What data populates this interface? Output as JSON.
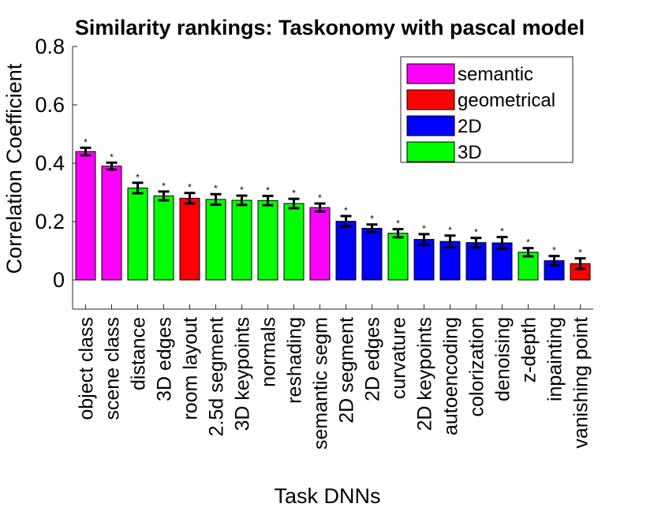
{
  "chart_data": {
    "type": "bar",
    "title": "Similarity rankings: Taskonomy with pascal model",
    "xlabel": "Task DNNs",
    "ylabel": "Correlation Coefficient",
    "ylim": [
      -0.1,
      0.8
    ],
    "yticks": [
      0,
      0.2,
      0.4,
      0.6,
      0.8
    ],
    "ytick_labels": [
      "0",
      "0.2",
      "0.4",
      "0.6",
      "0.8"
    ],
    "grid": false,
    "legend_position": "top-right",
    "significance_marker": "*",
    "groups": [
      {
        "name": "semantic",
        "color": "#ff00ff"
      },
      {
        "name": "geometrical",
        "color": "#ff0000"
      },
      {
        "name": "2D",
        "color": "#0000ff"
      },
      {
        "name": "3D",
        "color": "#00ff00"
      }
    ],
    "categories": [
      "object class",
      "scene class",
      "distance",
      "3D edges",
      "room layout",
      "2.5d segment",
      "3D keypoints",
      "normals",
      "reshading",
      "semantic segm",
      "2D segment",
      "2D edges",
      "curvature",
      "2D keypoints",
      "autoencoding",
      "colorization",
      "denoising",
      "z-depth",
      "inpainting",
      "vanishing point"
    ],
    "values": [
      0.44,
      0.39,
      0.315,
      0.288,
      0.28,
      0.276,
      0.273,
      0.272,
      0.262,
      0.248,
      0.201,
      0.177,
      0.16,
      0.139,
      0.132,
      0.128,
      0.127,
      0.095,
      0.066,
      0.056
    ],
    "errors": [
      0.013,
      0.012,
      0.018,
      0.015,
      0.018,
      0.018,
      0.016,
      0.016,
      0.016,
      0.014,
      0.018,
      0.013,
      0.014,
      0.018,
      0.02,
      0.016,
      0.02,
      0.014,
      0.016,
      0.018
    ],
    "bar_groups": [
      "semantic",
      "semantic",
      "3D",
      "3D",
      "geometrical",
      "3D",
      "3D",
      "3D",
      "3D",
      "semantic",
      "2D",
      "2D",
      "3D",
      "2D",
      "2D",
      "2D",
      "2D",
      "3D",
      "2D",
      "geometrical"
    ],
    "significant": [
      true,
      true,
      true,
      true,
      true,
      true,
      true,
      true,
      true,
      true,
      true,
      true,
      true,
      true,
      true,
      true,
      true,
      true,
      true,
      true
    ]
  }
}
